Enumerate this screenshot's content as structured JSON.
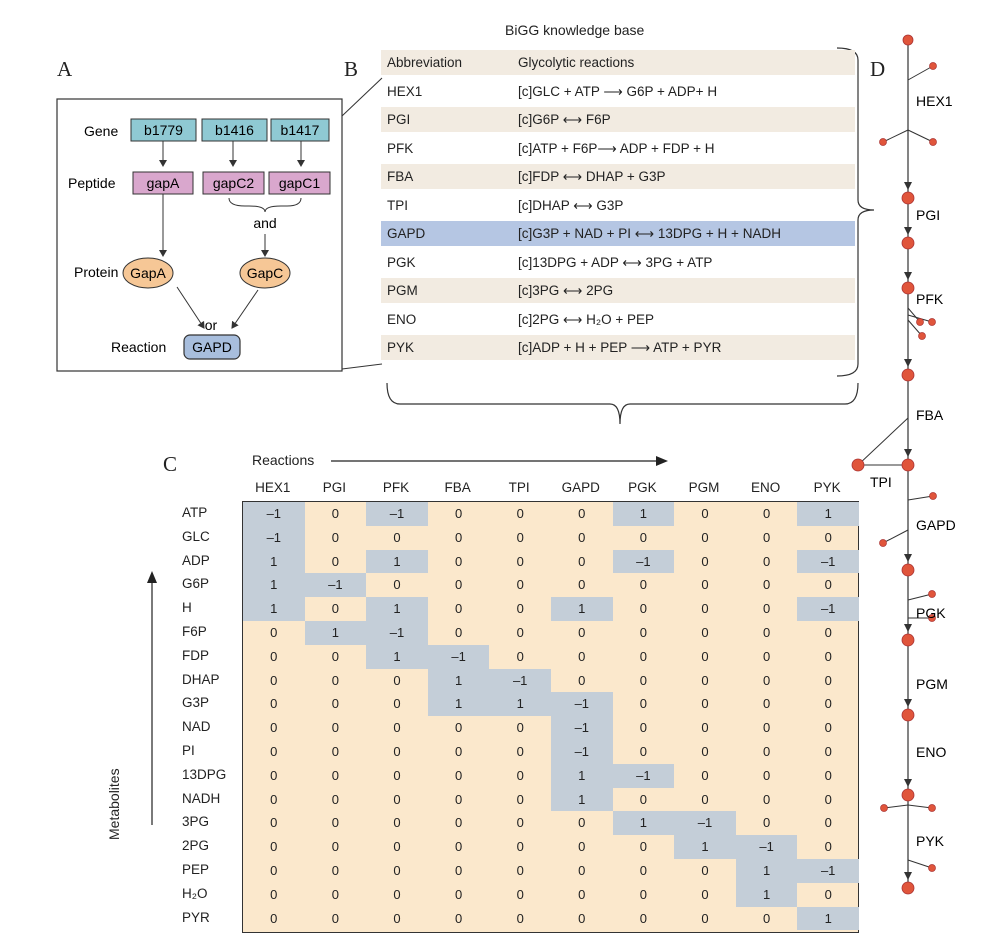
{
  "panels": {
    "a": "A",
    "b": "B",
    "c": "C",
    "d": "D"
  },
  "panel_a": {
    "level_labels": {
      "gene": "Gene",
      "peptide": "Peptide",
      "protein": "Protein",
      "reaction": "Reaction"
    },
    "genes": [
      "b1779",
      "b1416",
      "b1417"
    ],
    "peptides": [
      "gapA",
      "gapC2",
      "gapC1"
    ],
    "proteins": [
      "GapA",
      "GapC"
    ],
    "reaction": "GAPD",
    "and_label": "and",
    "or_label": "or",
    "colors": {
      "gene": "#8fc9d3",
      "peptide": "#d9a7cd",
      "protein": "#f6c796",
      "reaction": "#a8bedd"
    }
  },
  "panel_b": {
    "title": "BiGG knowledge base",
    "header": {
      "abbreviation": "Abbreviation",
      "reactions": "Glycolytic reactions"
    },
    "rows": [
      {
        "abbr": "HEX1",
        "rxn": "[c]GLC + ATP ⟶ G6P + ADP+ H"
      },
      {
        "abbr": "PGI",
        "rxn": "[c]G6P ⟷ F6P"
      },
      {
        "abbr": "PFK",
        "rxn": "[c]ATP + F6P⟶ ADP + FDP + H"
      },
      {
        "abbr": "FBA",
        "rxn": "[c]FDP ⟷ DHAP + G3P"
      },
      {
        "abbr": "TPI",
        "rxn": "[c]DHAP ⟷ G3P"
      },
      {
        "abbr": "GAPD",
        "rxn": "[c]G3P + NAD + PI ⟷ 13DPG + H + NADH"
      },
      {
        "abbr": "PGK",
        "rxn": "[c]13DPG + ADP ⟷ 3PG + ATP"
      },
      {
        "abbr": "PGM",
        "rxn": "[c]3PG ⟷ 2PG"
      },
      {
        "abbr": "ENO",
        "rxn": "[c]2PG ⟷ H₂O + PEP"
      },
      {
        "abbr": "PYK",
        "rxn": "[c]ADP + H + PEP ⟶ ATP + PYR"
      }
    ],
    "highlight_color": "#b5c6e3",
    "shade_color": "#f2ebe1"
  },
  "panel_c": {
    "reactions_label": "Reactions",
    "metabolites_label": "Metabolites",
    "columns": [
      "HEX1",
      "PGI",
      "PFK",
      "FBA",
      "TPI",
      "GAPD",
      "PGK",
      "PGM",
      "ENO",
      "PYK"
    ],
    "rows": [
      "ATP",
      "GLC",
      "ADP",
      "G6P",
      "H",
      "F6P",
      "FDP",
      "DHAP",
      "G3P",
      "NAD",
      "PI",
      "13DPG",
      "NADH",
      "3PG",
      "2PG",
      "PEP",
      "H₂O",
      "PYR"
    ],
    "matrix": [
      [
        "–1",
        "0",
        "–1",
        "0",
        "0",
        "0",
        "1",
        "0",
        "0",
        "1"
      ],
      [
        "–1",
        "0",
        "0",
        "0",
        "0",
        "0",
        "0",
        "0",
        "0",
        "0"
      ],
      [
        "1",
        "0",
        "1",
        "0",
        "0",
        "0",
        "–1",
        "0",
        "0",
        "–1"
      ],
      [
        "1",
        "–1",
        "0",
        "0",
        "0",
        "0",
        "0",
        "0",
        "0",
        "0"
      ],
      [
        "1",
        "0",
        "1",
        "0",
        "0",
        "1",
        "0",
        "0",
        "0",
        "–1"
      ],
      [
        "0",
        "1",
        "–1",
        "0",
        "0",
        "0",
        "0",
        "0",
        "0",
        "0"
      ],
      [
        "0",
        "0",
        "1",
        "–1",
        "0",
        "0",
        "0",
        "0",
        "0",
        "0"
      ],
      [
        "0",
        "0",
        "0",
        "1",
        "–1",
        "0",
        "0",
        "0",
        "0",
        "0"
      ],
      [
        "0",
        "0",
        "0",
        "1",
        "1",
        "–1",
        "0",
        "0",
        "0",
        "0"
      ],
      [
        "0",
        "0",
        "0",
        "0",
        "0",
        "–1",
        "0",
        "0",
        "0",
        "0"
      ],
      [
        "0",
        "0",
        "0",
        "0",
        "0",
        "–1",
        "0",
        "0",
        "0",
        "0"
      ],
      [
        "0",
        "0",
        "0",
        "0",
        "0",
        "1",
        "–1",
        "0",
        "0",
        "0"
      ],
      [
        "0",
        "0",
        "0",
        "0",
        "0",
        "1",
        "0",
        "0",
        "0",
        "0"
      ],
      [
        "0",
        "0",
        "0",
        "0",
        "0",
        "0",
        "1",
        "–1",
        "0",
        "0"
      ],
      [
        "0",
        "0",
        "0",
        "0",
        "0",
        "0",
        "0",
        "1",
        "–1",
        "0"
      ],
      [
        "0",
        "0",
        "0",
        "0",
        "0",
        "0",
        "0",
        "0",
        "1",
        "–1"
      ],
      [
        "0",
        "0",
        "0",
        "0",
        "0",
        "0",
        "0",
        "0",
        "1",
        "0"
      ],
      [
        "0",
        "0",
        "0",
        "0",
        "0",
        "0",
        "0",
        "0",
        "0",
        "1"
      ]
    ],
    "colors": {
      "background": "#fbe8cc",
      "nonzero": "#c4ced8"
    }
  },
  "panel_d": {
    "reactions": [
      "HEX1",
      "PGI",
      "PFK",
      "FBA",
      "TPI",
      "GAPD",
      "PGK",
      "PGM",
      "ENO",
      "PYK"
    ],
    "node_color": "#e0553b"
  }
}
